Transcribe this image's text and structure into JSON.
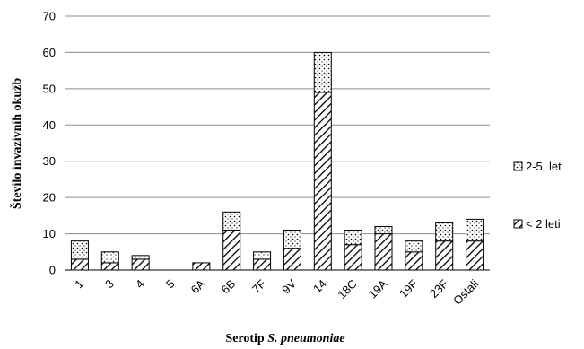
{
  "chart_data": {
    "type": "bar",
    "stacked": true,
    "categories": [
      "1",
      "3",
      "4",
      "5",
      "6A",
      "6B",
      "7F",
      "9V",
      "14",
      "18C",
      "19A",
      "19F",
      "23F",
      "Ostali"
    ],
    "series": [
      {
        "name": "< 2 leti",
        "values": [
          3,
          2,
          3,
          0,
          2,
          11,
          3,
          6,
          49,
          7,
          10,
          5,
          8,
          8
        ],
        "pattern": "diagonal-hatch"
      },
      {
        "name": "2-5  let",
        "values": [
          5,
          3,
          1,
          0,
          0,
          5,
          2,
          5,
          11,
          4,
          2,
          3,
          5,
          6
        ],
        "pattern": "dots"
      }
    ],
    "ylim": [
      0,
      70
    ],
    "yticks": [
      0,
      10,
      20,
      30,
      40,
      50,
      60,
      70
    ],
    "ylabel": "Število invazivnih okužb",
    "xlabel_plain": "Serotip ",
    "xlabel_italic": "S. pneumoniae",
    "grid": true,
    "legend_position": "right",
    "legend_order": [
      "2-5  let",
      "< 2 leti"
    ],
    "colors": {
      "grid": "#8c8c8c",
      "bar_edge": "#000000",
      "fill": "#ffffff"
    }
  }
}
